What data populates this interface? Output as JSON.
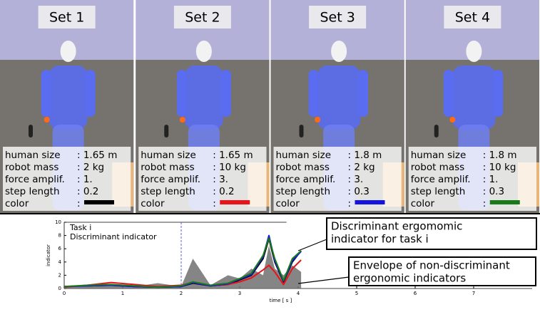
{
  "panels": [
    {
      "title": "Set 1",
      "rows": [
        [
          "human size",
          ": 1.65 m"
        ],
        [
          "robot mass",
          ": 2 kg"
        ],
        [
          "force amplif.",
          ": 1."
        ],
        [
          "step length",
          ": 0.2"
        ],
        [
          "color",
          ":"
        ]
      ],
      "swatch": "#000000"
    },
    {
      "title": "Set 2",
      "rows": [
        [
          "human size",
          ": 1.65 m"
        ],
        [
          "robot mass",
          ": 10 kg"
        ],
        [
          "force amplif.",
          ": 3."
        ],
        [
          "step length",
          ": 0.2"
        ],
        [
          "color",
          ":"
        ]
      ],
      "swatch": "#e8141a"
    },
    {
      "title": "Set 3",
      "rows": [
        [
          "human size",
          ": 1.8 m"
        ],
        [
          "robot mass",
          ": 2 kg"
        ],
        [
          "force amplif.",
          ": 3."
        ],
        [
          "step length",
          ": 0.3"
        ],
        [
          "color",
          ":"
        ]
      ],
      "swatch": "#1414e0"
    },
    {
      "title": "Set 4",
      "rows": [
        [
          "human size",
          ": 1.8 m"
        ],
        [
          "robot mass",
          ": 10 kg"
        ],
        [
          "force amplif.",
          ": 1."
        ],
        [
          "step length",
          ": 0.3"
        ],
        [
          "color",
          ":"
        ]
      ],
      "swatch": "#1a7a1a"
    }
  ],
  "chart_data": {
    "type": "line",
    "texts": [
      "Task i",
      "Discriminant indicator"
    ],
    "xlabel": "time [ s ]",
    "ylabel": "indicator",
    "annotations": [
      [
        "Discriminant ergomomic",
        "indicator for task i"
      ],
      [
        "Envelope of non-discriminant",
        "ergonomic indicators"
      ]
    ],
    "marker_x": 2,
    "x": [
      0,
      0.4,
      0.8,
      1.2,
      1.6,
      2.0,
      2.2,
      2.5,
      2.8,
      3.0,
      3.2,
      3.4,
      3.5,
      3.6,
      3.75,
      3.9,
      4.05
    ],
    "envelope": {
      "color": "#707070",
      "values": [
        0.2,
        0.3,
        0.5,
        0.3,
        0.8,
        0.3,
        4.5,
        0.5,
        2.0,
        1.5,
        3.0,
        2.0,
        6.5,
        3.0,
        2.0,
        3.5,
        2.5
      ]
    },
    "series": [
      {
        "color": "#000000",
        "values": [
          0.3,
          0.4,
          0.5,
          0.3,
          0.2,
          0.3,
          0.8,
          0.4,
          0.6,
          1.3,
          2.0,
          4.5,
          7.5,
          4.0,
          1.0,
          4.0,
          5.7
        ]
      },
      {
        "color": "#e8141a",
        "values": [
          0.2,
          0.5,
          0.9,
          0.6,
          0.3,
          0.5,
          0.9,
          0.4,
          0.6,
          1.0,
          1.6,
          2.8,
          3.5,
          2.5,
          0.6,
          3.0,
          4.3
        ]
      },
      {
        "color": "#1414e0",
        "values": [
          0.3,
          0.4,
          0.5,
          0.3,
          0.2,
          0.3,
          0.9,
          0.4,
          0.7,
          1.4,
          2.1,
          4.8,
          8.0,
          4.2,
          1.1,
          4.2,
          5.6
        ]
      },
      {
        "color": "#1a7a1a",
        "values": [
          0.3,
          0.5,
          0.6,
          0.4,
          0.2,
          0.4,
          1.0,
          0.5,
          0.8,
          1.5,
          2.3,
          5.0,
          7.6,
          4.5,
          1.2,
          4.5,
          5.7
        ]
      }
    ],
    "xlim": [
      0,
      8
    ],
    "xticks": [
      0,
      1,
      2,
      3,
      4,
      5,
      6,
      7
    ],
    "ylim": [
      0,
      10
    ],
    "yticks": [
      0,
      2,
      4,
      6,
      8,
      10
    ]
  }
}
